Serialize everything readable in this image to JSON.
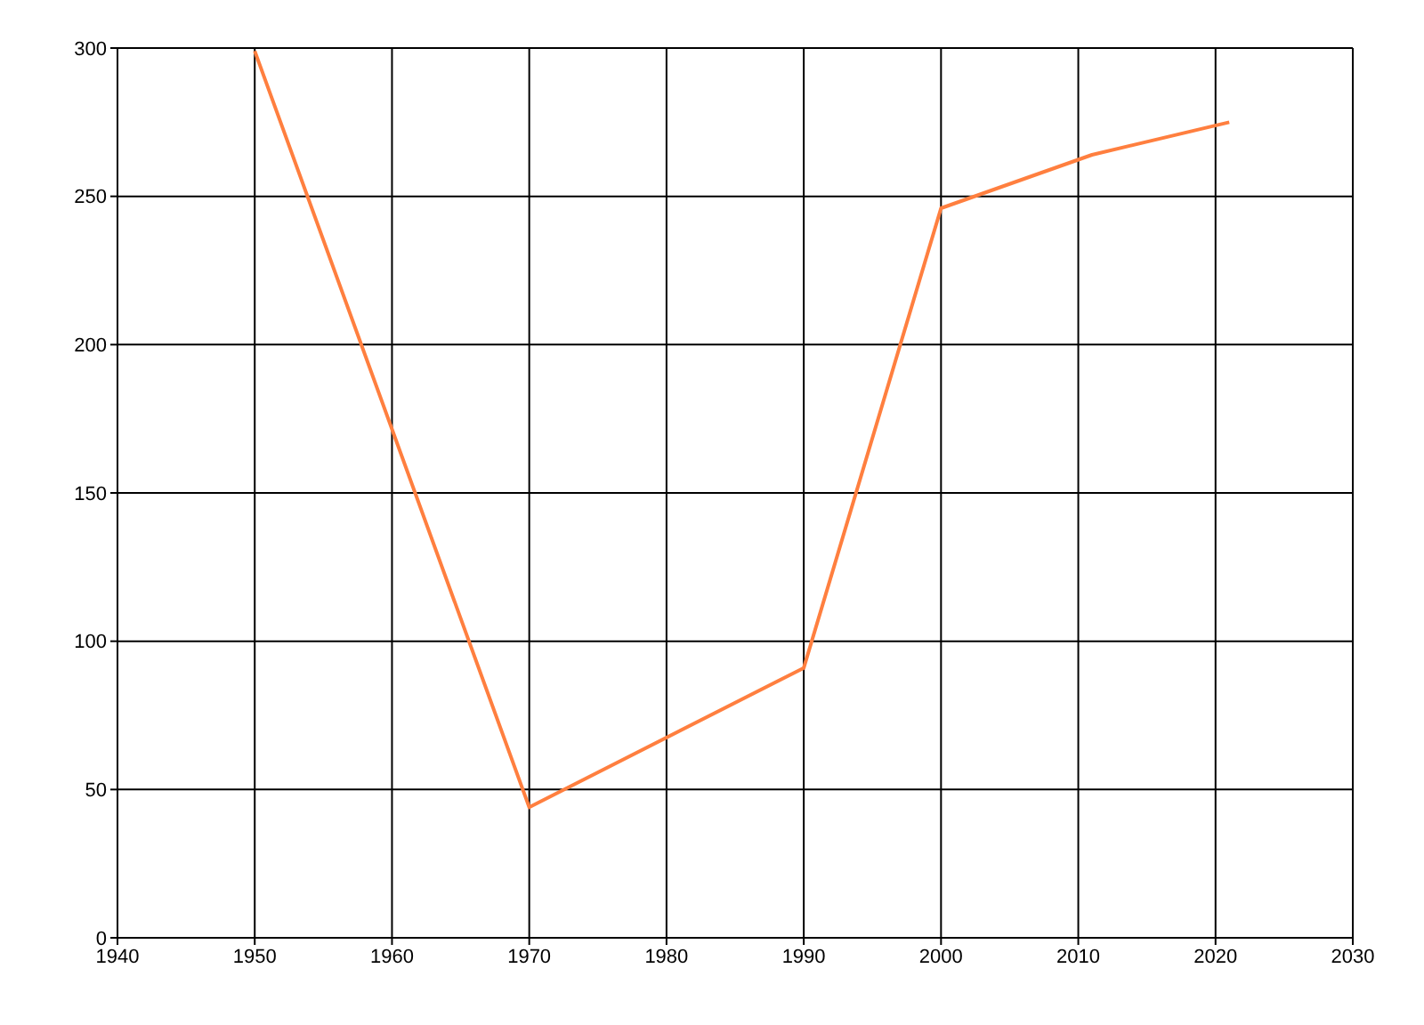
{
  "chart_data": {
    "type": "line",
    "x": [
      1950,
      1970,
      1990,
      2000,
      2011,
      2021
    ],
    "series": [
      {
        "color": "#ff7f3f",
        "values": [
          299,
          44,
          91,
          246,
          264,
          275
        ]
      }
    ],
    "xlim": [
      1940,
      2030
    ],
    "xticks": [
      1940,
      1950,
      1960,
      1970,
      1980,
      1990,
      2000,
      2010,
      2020,
      2030
    ],
    "ylim": [
      0,
      300
    ],
    "yticks": [
      0,
      50,
      100,
      150,
      200,
      250,
      300
    ],
    "grid": true,
    "legend": false
  }
}
